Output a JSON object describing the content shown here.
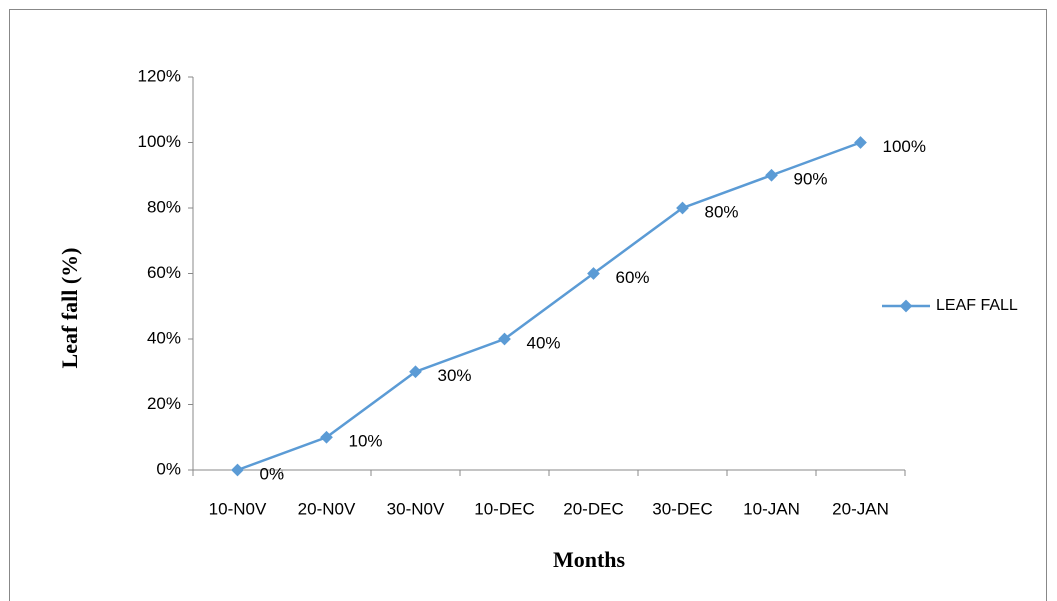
{
  "chart_data": {
    "type": "line",
    "x_label": "Months",
    "y_label": "Leaf fall (%)",
    "categories": [
      "10-N0V",
      "20-N0V",
      "30-N0V",
      "10-DEC",
      "20-DEC",
      "30-DEC",
      "10-JAN",
      "20-JAN"
    ],
    "series": [
      {
        "name": "LEAF FALL",
        "color": "#5b9bd5",
        "values": [
          0,
          10,
          30,
          40,
          60,
          80,
          90,
          100
        ],
        "value_labels": [
          "0%",
          "10%",
          "30%",
          "40%",
          "60%",
          "80%",
          "90%",
          "100%"
        ]
      }
    ],
    "ylim": [
      0,
      120
    ],
    "yticks": [
      {
        "value": 0,
        "label": "0%"
      },
      {
        "value": 20,
        "label": "20%"
      },
      {
        "value": 40,
        "label": "40%"
      },
      {
        "value": 60,
        "label": "60%"
      },
      {
        "value": 80,
        "label": "80%"
      },
      {
        "value": 100,
        "label": "100%"
      },
      {
        "value": 120,
        "label": "120%"
      }
    ],
    "legend": "right"
  }
}
